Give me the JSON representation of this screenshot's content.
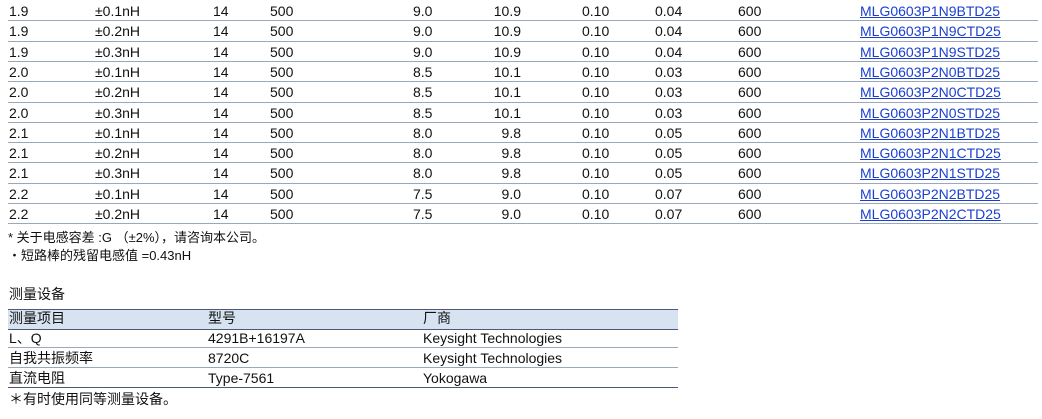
{
  "table": {
    "rows": [
      [
        "1.9",
        "±0.1nH",
        "14",
        "500",
        "9.0",
        "10.9",
        "0.10",
        "0.04",
        "600",
        "MLG0603P1N9BTD25"
      ],
      [
        "1.9",
        "±0.2nH",
        "14",
        "500",
        "9.0",
        "10.9",
        "0.10",
        "0.04",
        "600",
        "MLG0603P1N9CTD25"
      ],
      [
        "1.9",
        "±0.3nH",
        "14",
        "500",
        "9.0",
        "10.9",
        "0.10",
        "0.04",
        "600",
        "MLG0603P1N9STD25"
      ],
      [
        "2.0",
        "±0.1nH",
        "14",
        "500",
        "8.5",
        "10.1",
        "0.10",
        "0.03",
        "600",
        "MLG0603P2N0BTD25"
      ],
      [
        "2.0",
        "±0.2nH",
        "14",
        "500",
        "8.5",
        "10.1",
        "0.10",
        "0.03",
        "600",
        "MLG0603P2N0CTD25"
      ],
      [
        "2.0",
        "±0.3nH",
        "14",
        "500",
        "8.5",
        "10.1",
        "0.10",
        "0.03",
        "600",
        "MLG0603P2N0STD25"
      ],
      [
        "2.1",
        "±0.1nH",
        "14",
        "500",
        "8.0",
        "9.8",
        "0.10",
        "0.05",
        "600",
        "MLG0603P2N1BTD25"
      ],
      [
        "2.1",
        "±0.2nH",
        "14",
        "500",
        "8.0",
        "9.8",
        "0.10",
        "0.05",
        "600",
        "MLG0603P2N1CTD25"
      ],
      [
        "2.1",
        "±0.3nH",
        "14",
        "500",
        "8.0",
        "9.8",
        "0.10",
        "0.05",
        "600",
        "MLG0603P2N1STD25"
      ],
      [
        "2.2",
        "±0.1nH",
        "14",
        "500",
        "7.5",
        "9.0",
        "0.10",
        "0.07",
        "600",
        "MLG0603P2N2BTD25"
      ],
      [
        "2.2",
        "±0.2nH",
        "14",
        "500",
        "7.5",
        "9.0",
        "0.10",
        "0.07",
        "600",
        "MLG0603P2N2CTD25"
      ]
    ]
  },
  "notes": [
    "* 关于电感容差 :G （±2%），请咨询本公司。",
    "・短路棒的残留电感值 =0.43nH"
  ],
  "equipment": {
    "title": "测量设备",
    "header": [
      "测量项目",
      "型号",
      "厂商"
    ],
    "rows": [
      [
        "L、Q",
        "4291B+16197A",
        "Keysight Technologies"
      ],
      [
        "自我共振频率",
        "8720C",
        "Keysight Technologies"
      ],
      [
        "直流电阻",
        "Type-7561",
        "Yokogawa"
      ]
    ],
    "note": "＊有时使用同等测量设备。"
  }
}
